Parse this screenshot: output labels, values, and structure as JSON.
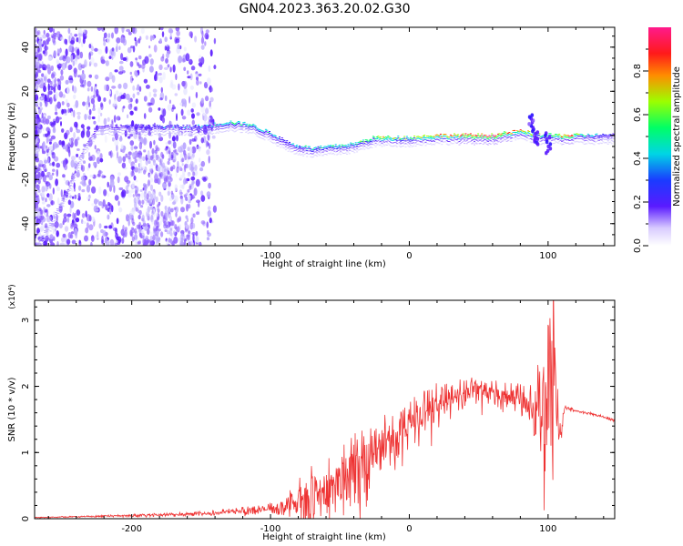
{
  "page": {
    "title": "GN04.2023.363.20.02.G30"
  },
  "colors": {
    "snr_line": "#ee3333",
    "colormap": [
      "#e9e9ff",
      "#b9a6ff",
      "#8c5cff",
      "#5a1bff",
      "#2a10ff",
      "#00d5e5",
      "#00ff66",
      "#9cff00",
      "#ff8c00",
      "#ff1a1a",
      "#ff00a0"
    ]
  },
  "chart_data": [
    {
      "type": "heatmap",
      "title": "GN04.2023.363.20.02.G30",
      "xlabel": "Height of straight line (km)",
      "ylabel": "Frequency (Hz)",
      "xlim": [
        -270,
        148
      ],
      "ylim": [
        -50,
        49
      ],
      "xticks": [
        -200,
        -100,
        0,
        100
      ],
      "yticks": [
        -40,
        -20,
        0,
        20,
        40
      ],
      "colorbar": {
        "label": "Normalized spectral amplitude",
        "range": [
          0,
          1
        ],
        "ticks": [
          "0.0",
          "0.2",
          "0.4",
          "0.6",
          "0.8"
        ],
        "tick_values": [
          0,
          0.2,
          0.4,
          0.6,
          0.8
        ]
      },
      "ridge": [
        {
          "x": -270,
          "y": -50
        },
        {
          "x": -258,
          "y": -38
        },
        {
          "x": -245,
          "y": -22
        },
        {
          "x": -235,
          "y": -5
        },
        {
          "x": -225,
          "y": 5
        },
        {
          "x": -200,
          "y": 5
        },
        {
          "x": -175,
          "y": 5
        },
        {
          "x": -150,
          "y": 5
        },
        {
          "x": -130,
          "y": 7
        },
        {
          "x": -115,
          "y": 6
        },
        {
          "x": -100,
          "y": 2
        },
        {
          "x": -85,
          "y": -3
        },
        {
          "x": -70,
          "y": -5
        },
        {
          "x": -55,
          "y": -4
        },
        {
          "x": -40,
          "y": -3
        },
        {
          "x": -25,
          "y": 0
        },
        {
          "x": -10,
          "y": 0
        },
        {
          "x": 0,
          "y": 0
        },
        {
          "x": 20,
          "y": 1
        },
        {
          "x": 40,
          "y": 1
        },
        {
          "x": 60,
          "y": 1
        },
        {
          "x": 80,
          "y": 3
        },
        {
          "x": 95,
          "y": 1
        },
        {
          "x": 110,
          "y": 1
        },
        {
          "x": 148,
          "y": 1
        }
      ],
      "ridge_strength": [
        {
          "x": -270,
          "v": 0.1
        },
        {
          "x": -230,
          "v": 0.22
        },
        {
          "x": -200,
          "v": 0.38
        },
        {
          "x": -150,
          "v": 0.45
        },
        {
          "x": -125,
          "v": 0.6
        },
        {
          "x": -110,
          "v": 0.55
        },
        {
          "x": -90,
          "v": 0.45
        },
        {
          "x": -60,
          "v": 0.62
        },
        {
          "x": -40,
          "v": 0.58
        },
        {
          "x": -20,
          "v": 0.72
        },
        {
          "x": 0,
          "v": 0.66
        },
        {
          "x": 20,
          "v": 0.8
        },
        {
          "x": 60,
          "v": 0.9
        },
        {
          "x": 85,
          "v": 0.75
        },
        {
          "x": 100,
          "v": 0.6
        },
        {
          "x": 115,
          "v": 0.95
        },
        {
          "x": 125,
          "v": 0.55
        },
        {
          "x": 148,
          "v": 0.35
        }
      ]
    },
    {
      "type": "line",
      "xlabel": "Height of straight line (km)",
      "ylabel": "SNR (10 * v/v)",
      "y_multiplier": "(x10⁴)",
      "xlim": [
        -270,
        148
      ],
      "ylim": [
        0,
        3.3
      ],
      "xticks": [
        -200,
        -100,
        0,
        100
      ],
      "yticks": [
        0,
        1,
        2,
        3
      ],
      "series": [
        {
          "x": [
            -270,
            -240,
            -200,
            -160,
            -140,
            -120,
            -100,
            -90,
            -80,
            -70,
            -60,
            -50,
            -40,
            -30,
            -20,
            -10,
            0,
            10,
            20,
            30,
            40,
            50,
            60,
            70,
            80,
            88,
            92,
            96,
            100,
            104,
            108,
            112,
            120,
            130,
            140,
            148
          ],
          "values": [
            0.02,
            0.03,
            0.05,
            0.07,
            0.09,
            0.12,
            0.15,
            0.2,
            0.3,
            0.4,
            0.5,
            0.6,
            0.75,
            0.95,
            1.1,
            1.3,
            1.45,
            1.6,
            1.75,
            1.85,
            1.9,
            1.95,
            1.9,
            1.85,
            1.8,
            1.7,
            1.5,
            2.0,
            1.8,
            2.4,
            1.2,
            1.68,
            1.63,
            1.59,
            1.54,
            1.49
          ],
          "noise": [
            0.01,
            0.01,
            0.02,
            0.03,
            0.04,
            0.06,
            0.09,
            0.16,
            0.3,
            0.45,
            0.5,
            0.5,
            0.55,
            0.55,
            0.5,
            0.45,
            0.4,
            0.35,
            0.3,
            0.25,
            0.22,
            0.2,
            0.2,
            0.2,
            0.25,
            0.4,
            0.7,
            1.2,
            1.4,
            1.3,
            0.3,
            0.03,
            0.02,
            0.02,
            0.02,
            0.02
          ]
        }
      ]
    }
  ]
}
